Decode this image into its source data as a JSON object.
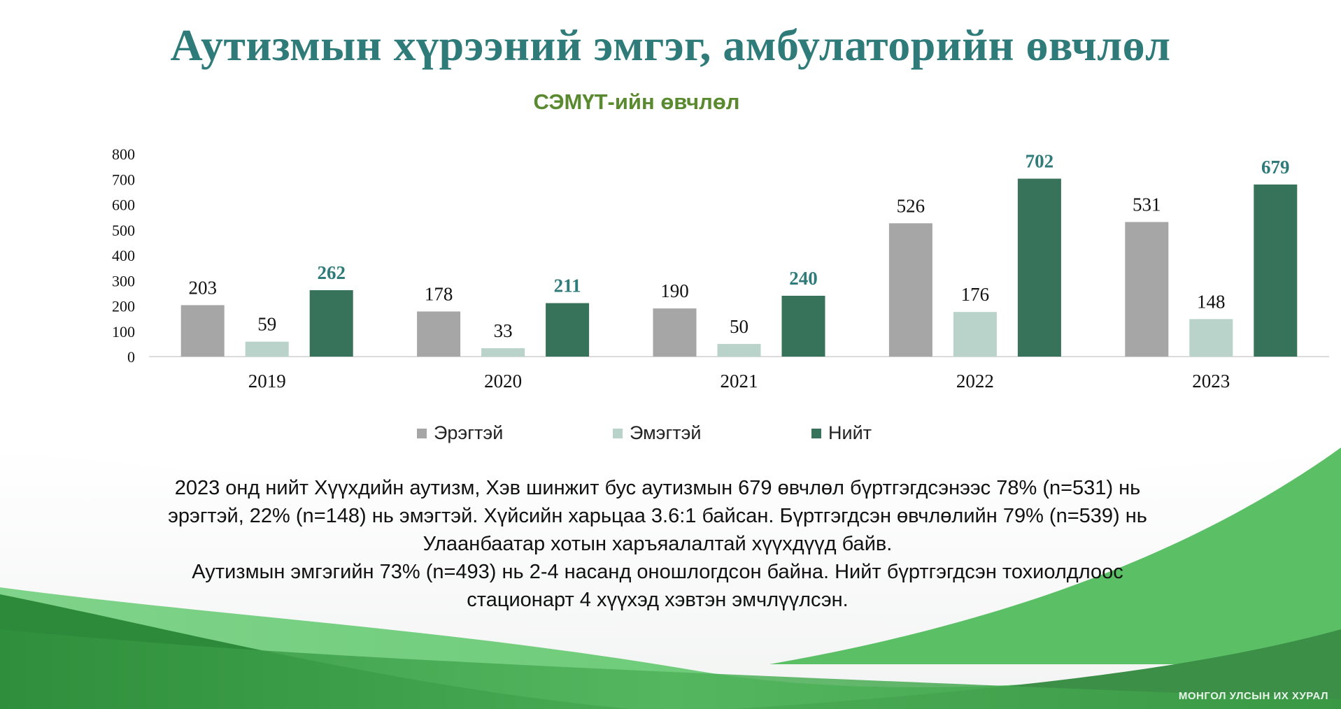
{
  "page": {
    "title": "Аутизмын хүрээний эмгэг, амбулаторийн өвчлөл",
    "footer": "МОНГОЛ УЛСЫН ИХ ХУРАЛ"
  },
  "summary": {
    "line1": "2023 онд нийт Хүүхдийн аутизм, Хэв шинжит бус аутизмын 679 өвчлөл бүртгэгдсэнээс 78% (n=531) нь",
    "line2": "эрэгтэй, 22% (n=148) нь эмэгтэй. Хүйсийн харьцаа 3.6:1 байсан. Бүртгэгдсэн өвчлөлийн 79% (n=539) нь",
    "line3": "Улаанбаатар хотын харъяалалтай хүүхдүүд байв.",
    "line4": "Аутизмын эмгэгийн 73% (n=493) нь 2-4 насанд оношлогдсон байна.  Нийт бүртгэгдсэн тохиолдлоос",
    "line5": "стационарт 4 хүүхэд хэвтэн эмчлүүлсэн."
  },
  "colors": {
    "title": "#2e7b7a",
    "subtitle": "#5a8a2f",
    "male": "#a6a6a6",
    "female": "#b9d3cb",
    "total": "#36735a",
    "total_label": "#2e7b7a"
  },
  "chart_data": {
    "type": "bar",
    "title": "СЭМҮТ-ийн өвчлөл",
    "categories": [
      "2019",
      "2020",
      "2021",
      "2022",
      "2023"
    ],
    "series": [
      {
        "name": "Эрэгтэй",
        "values": [
          203,
          178,
          190,
          526,
          531
        ]
      },
      {
        "name": "Эмэгтэй",
        "values": [
          59,
          33,
          50,
          176,
          148
        ]
      },
      {
        "name": "Нийт",
        "values": [
          262,
          211,
          240,
          702,
          679
        ]
      }
    ],
    "ylim": [
      0,
      800
    ],
    "yticks": [
      "0",
      "100",
      "200",
      "300",
      "400",
      "500",
      "600",
      "700",
      "800"
    ],
    "grid": false,
    "legend": "bottom"
  }
}
